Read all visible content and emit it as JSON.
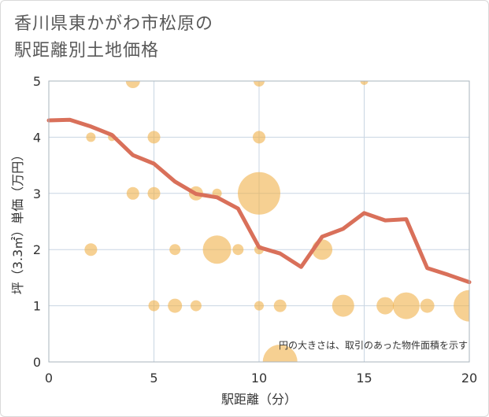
{
  "title": {
    "line1": "香川県東かがわ市松原の",
    "line2": "駅距離別土地価格"
  },
  "colors": {
    "bubble": "#f0b14a",
    "line": "#d9705a",
    "grid": "#c9d6e3",
    "plot_border": "#aab4be"
  },
  "chart_data": {
    "type": "scatter",
    "xlabel": "駅距離（分）",
    "ylabel": "坪（3.3㎡）単価（万円）",
    "xlim": [
      0,
      20
    ],
    "ylim": [
      0,
      5
    ],
    "xticks": [
      "0",
      "5",
      "10",
      "15",
      "20"
    ],
    "yticks": [
      "0",
      "1",
      "2",
      "3",
      "4",
      "5"
    ],
    "grid": true,
    "note": "円の大きさは、取引のあった物件面積を示す",
    "bubbles": [
      {
        "x": 4,
        "y": 5,
        "r": 9
      },
      {
        "x": 10,
        "y": 5,
        "r": 7
      },
      {
        "x": 15,
        "y": 5,
        "r": 5
      },
      {
        "x": 2,
        "y": 4,
        "r": 6
      },
      {
        "x": 3,
        "y": 4,
        "r": 5
      },
      {
        "x": 5,
        "y": 4,
        "r": 8
      },
      {
        "x": 10,
        "y": 4,
        "r": 8
      },
      {
        "x": 4,
        "y": 3,
        "r": 8
      },
      {
        "x": 5,
        "y": 3,
        "r": 8
      },
      {
        "x": 7,
        "y": 3,
        "r": 9
      },
      {
        "x": 8,
        "y": 3,
        "r": 6
      },
      {
        "x": 10,
        "y": 3,
        "r": 27
      },
      {
        "x": 2,
        "y": 2,
        "r": 8
      },
      {
        "x": 6,
        "y": 2,
        "r": 7
      },
      {
        "x": 8,
        "y": 2,
        "r": 18
      },
      {
        "x": 9,
        "y": 2,
        "r": 7
      },
      {
        "x": 10,
        "y": 2,
        "r": 6
      },
      {
        "x": 13,
        "y": 2,
        "r": 13
      },
      {
        "x": 5,
        "y": 1,
        "r": 7
      },
      {
        "x": 6,
        "y": 1,
        "r": 9
      },
      {
        "x": 7,
        "y": 1,
        "r": 7
      },
      {
        "x": 10,
        "y": 1,
        "r": 6
      },
      {
        "x": 11,
        "y": 1,
        "r": 8
      },
      {
        "x": 14,
        "y": 1,
        "r": 14
      },
      {
        "x": 16,
        "y": 1,
        "r": 11
      },
      {
        "x": 17,
        "y": 1,
        "r": 17
      },
      {
        "x": 18,
        "y": 1,
        "r": 9
      },
      {
        "x": 20,
        "y": 1,
        "r": 20
      },
      {
        "x": 11,
        "y": 0,
        "r": 22
      }
    ],
    "series": [
      {
        "x": [
          0,
          1,
          2,
          3,
          4,
          5,
          6,
          7,
          8,
          9,
          10,
          11,
          12,
          13,
          14,
          15,
          16,
          17,
          18,
          19,
          20
        ],
        "values": [
          4.3,
          4.31,
          4.19,
          4.04,
          3.68,
          3.53,
          3.21,
          2.99,
          2.93,
          2.73,
          2.04,
          1.93,
          1.69,
          2.23,
          2.37,
          2.65,
          2.52,
          2.54,
          1.67,
          1.55,
          1.42
        ]
      }
    ]
  }
}
